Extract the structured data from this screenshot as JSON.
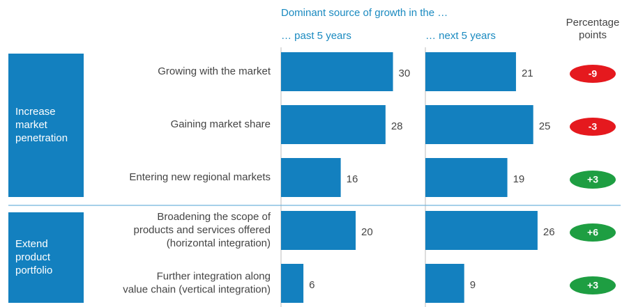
{
  "chart_data": {
    "type": "paired_bar",
    "title": "Dominant source of growth in the …",
    "groups": [
      {
        "label": [
          "Increase",
          "market",
          "penetration"
        ],
        "categories": [
          [
            "Growing with the market"
          ],
          [
            "Gaining market share"
          ],
          [
            "Entering new regional markets"
          ]
        ]
      },
      {
        "label": [
          "Extend",
          "product",
          "portfolio"
        ],
        "categories": [
          [
            "Broadening the scope of",
            "products and services offered",
            "(horizontal integration)"
          ],
          [
            "Further integration along",
            "value chain (vertical integration)"
          ]
        ]
      }
    ],
    "series": [
      {
        "name": "… past 5 years",
        "color": "#1380bf",
        "values": [
          30,
          28,
          16,
          20,
          6
        ],
        "xlim": [
          0,
          37
        ]
      },
      {
        "name": "… next 5 years",
        "color": "#1380bf",
        "values": [
          21,
          25,
          19,
          26,
          9
        ],
        "xlim": [
          0,
          32
        ]
      }
    ],
    "difference": {
      "name": [
        "Percentage",
        "points"
      ],
      "values": [
        -9,
        -3,
        3,
        6,
        3
      ],
      "value_labels": [
        "-9",
        "-3",
        "+3",
        "+6",
        "+3"
      ],
      "negative_color": "#e5191e",
      "positive_color": "#1e9e42"
    }
  }
}
